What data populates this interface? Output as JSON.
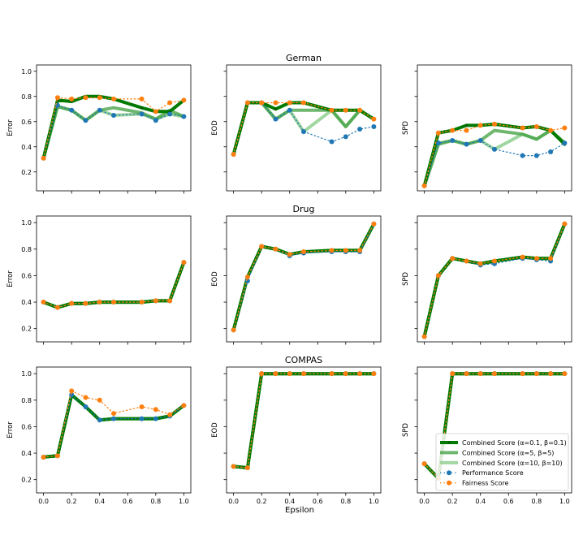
{
  "figure": {
    "shared_xlabel": "Epsilon",
    "row_titles": [
      "German",
      "Drug",
      "COMPAS"
    ],
    "ylabels": [
      "Error",
      "EOD",
      "SPD"
    ],
    "legend": [
      {
        "label": "Combined Score (α=0.1, β=0.1)",
        "color": "#007a00"
      },
      {
        "label": "Combined Score (α=5, β=5)",
        "color": "#3f9f3f"
      },
      {
        "label": "Combined Score (α=10, β=10)",
        "color": "#8fcf8f"
      },
      {
        "label": "Performance Score",
        "color": "#1f77b4"
      },
      {
        "label": "Fairness Score",
        "color": "#ff7f0e"
      }
    ]
  },
  "chart_data": [
    {
      "type": "line",
      "dataset": "German",
      "metric": "Error",
      "title": "German",
      "xlabel": "",
      "ylabel": "Error",
      "x": [
        0.0,
        0.1,
        0.2,
        0.3,
        0.4,
        0.5,
        0.7,
        0.8,
        0.9,
        1.0
      ],
      "xlim": [
        -0.05,
        1.05
      ],
      "ylim": [
        0.05,
        1.05
      ],
      "xticks": [
        0.0,
        0.2,
        0.4,
        0.6,
        0.8,
        1.0
      ],
      "yticks": [
        0.2,
        0.4,
        0.6,
        0.8,
        1.0
      ],
      "show_xtick_labels": false,
      "show_ytick_labels": true,
      "series": [
        {
          "name": "Combined Score (α=0.1, β=0.1)",
          "values": [
            0.31,
            0.77,
            0.76,
            0.8,
            0.8,
            0.78,
            0.71,
            0.68,
            0.68,
            0.77
          ]
        },
        {
          "name": "Combined Score (α=5, β=5)",
          "values": [
            0.31,
            0.72,
            0.69,
            0.61,
            0.69,
            0.71,
            0.67,
            0.62,
            0.69,
            0.64
          ]
        },
        {
          "name": "Combined Score (α=10, β=10)",
          "values": [
            0.31,
            0.72,
            0.69,
            0.61,
            0.69,
            0.65,
            0.66,
            0.62,
            0.66,
            0.64
          ]
        },
        {
          "name": "Performance Score",
          "values": [
            0.31,
            0.73,
            0.69,
            0.61,
            0.69,
            0.65,
            0.66,
            0.61,
            0.66,
            0.64
          ]
        },
        {
          "name": "Fairness Score",
          "values": [
            0.31,
            0.79,
            0.78,
            0.79,
            0.79,
            0.78,
            0.78,
            0.68,
            0.75,
            0.77
          ]
        }
      ]
    },
    {
      "type": "line",
      "dataset": "German",
      "metric": "EOD",
      "title": "German",
      "xlabel": "",
      "ylabel": "EOD",
      "x": [
        0.0,
        0.1,
        0.2,
        0.3,
        0.4,
        0.5,
        0.7,
        0.8,
        0.9,
        1.0
      ],
      "xlim": [
        -0.05,
        1.05
      ],
      "ylim": [
        0.05,
        1.05
      ],
      "xticks": [
        0.0,
        0.2,
        0.4,
        0.6,
        0.8,
        1.0
      ],
      "yticks": [
        0.2,
        0.4,
        0.6,
        0.8,
        1.0
      ],
      "show_xtick_labels": false,
      "show_ytick_labels": false,
      "series": [
        {
          "name": "Combined Score (α=0.1, β=0.1)",
          "values": [
            0.34,
            0.75,
            0.75,
            0.7,
            0.75,
            0.75,
            0.69,
            0.69,
            0.69,
            0.62
          ]
        },
        {
          "name": "Combined Score (α=5, β=5)",
          "values": [
            0.34,
            0.75,
            0.75,
            0.62,
            0.69,
            0.69,
            0.69,
            0.56,
            0.69,
            0.62
          ]
        },
        {
          "name": "Combined Score (α=10, β=10)",
          "values": [
            0.34,
            0.75,
            0.75,
            0.62,
            0.69,
            0.52,
            0.69,
            0.56,
            0.69,
            0.62
          ]
        },
        {
          "name": "Performance Score",
          "values": [
            0.34,
            0.75,
            0.75,
            0.62,
            0.69,
            0.52,
            0.44,
            0.48,
            0.54,
            0.56
          ]
        },
        {
          "name": "Fairness Score",
          "values": [
            0.34,
            0.75,
            0.75,
            0.75,
            0.75,
            0.75,
            0.69,
            0.69,
            0.69,
            0.62
          ]
        }
      ]
    },
    {
      "type": "line",
      "dataset": "German",
      "metric": "SPD",
      "title": "German",
      "xlabel": "",
      "ylabel": "SPD",
      "x": [
        0.0,
        0.1,
        0.2,
        0.3,
        0.4,
        0.5,
        0.7,
        0.8,
        0.9,
        1.0
      ],
      "xlim": [
        -0.05,
        1.05
      ],
      "ylim": [
        0.05,
        1.05
      ],
      "xticks": [
        0.0,
        0.2,
        0.4,
        0.6,
        0.8,
        1.0
      ],
      "yticks": [
        0.2,
        0.4,
        0.6,
        0.8,
        1.0
      ],
      "show_xtick_labels": false,
      "show_ytick_labels": false,
      "series": [
        {
          "name": "Combined Score (α=0.1, β=0.1)",
          "values": [
            0.09,
            0.51,
            0.53,
            0.57,
            0.57,
            0.58,
            0.55,
            0.56,
            0.53,
            0.42
          ]
        },
        {
          "name": "Combined Score (α=5, β=5)",
          "values": [
            0.09,
            0.42,
            0.45,
            0.42,
            0.45,
            0.53,
            0.5,
            0.46,
            0.53,
            0.43
          ]
        },
        {
          "name": "Combined Score (α=10, β=10)",
          "values": [
            0.09,
            0.43,
            0.45,
            0.42,
            0.45,
            0.38,
            0.5,
            0.46,
            0.53,
            0.43
          ]
        },
        {
          "name": "Performance Score",
          "values": [
            0.09,
            0.43,
            0.45,
            0.42,
            0.45,
            0.38,
            0.33,
            0.33,
            0.36,
            0.43
          ]
        },
        {
          "name": "Fairness Score",
          "values": [
            0.09,
            0.51,
            0.53,
            0.53,
            0.57,
            0.58,
            0.55,
            0.56,
            0.53,
            0.55
          ]
        }
      ]
    },
    {
      "type": "line",
      "dataset": "Drug",
      "metric": "Error",
      "title": "Drug",
      "xlabel": "",
      "ylabel": "Error",
      "x": [
        0.0,
        0.1,
        0.2,
        0.3,
        0.4,
        0.5,
        0.7,
        0.8,
        0.9,
        1.0
      ],
      "xlim": [
        -0.05,
        1.05
      ],
      "ylim": [
        0.1,
        1.05
      ],
      "xticks": [
        0.0,
        0.2,
        0.4,
        0.6,
        0.8,
        1.0
      ],
      "yticks": [
        0.2,
        0.4,
        0.6,
        0.8,
        1.0
      ],
      "show_xtick_labels": false,
      "show_ytick_labels": true,
      "series": [
        {
          "name": "Combined Score (α=0.1, β=0.1)",
          "values": [
            0.4,
            0.36,
            0.39,
            0.39,
            0.4,
            0.4,
            0.4,
            0.41,
            0.41,
            0.7
          ]
        },
        {
          "name": "Combined Score (α=5, β=5)",
          "values": [
            0.4,
            0.36,
            0.39,
            0.39,
            0.4,
            0.4,
            0.4,
            0.41,
            0.41,
            0.7
          ]
        },
        {
          "name": "Combined Score (α=10, β=10)",
          "values": [
            0.4,
            0.36,
            0.39,
            0.39,
            0.4,
            0.4,
            0.4,
            0.41,
            0.41,
            0.7
          ]
        },
        {
          "name": "Performance Score",
          "values": [
            0.4,
            0.36,
            0.39,
            0.39,
            0.4,
            0.4,
            0.4,
            0.41,
            0.41,
            0.7
          ]
        },
        {
          "name": "Fairness Score",
          "values": [
            0.4,
            0.36,
            0.39,
            0.39,
            0.4,
            0.4,
            0.4,
            0.41,
            0.41,
            0.7
          ]
        }
      ]
    },
    {
      "type": "line",
      "dataset": "Drug",
      "metric": "EOD",
      "title": "Drug",
      "xlabel": "",
      "ylabel": "EOD",
      "x": [
        0.0,
        0.1,
        0.2,
        0.3,
        0.4,
        0.5,
        0.7,
        0.8,
        0.9,
        1.0
      ],
      "xlim": [
        -0.05,
        1.05
      ],
      "ylim": [
        0.1,
        1.05
      ],
      "xticks": [
        0.0,
        0.2,
        0.4,
        0.6,
        0.8,
        1.0
      ],
      "yticks": [
        0.2,
        0.4,
        0.6,
        0.8,
        1.0
      ],
      "show_xtick_labels": false,
      "show_ytick_labels": false,
      "series": [
        {
          "name": "Combined Score (α=0.1, β=0.1)",
          "values": [
            0.19,
            0.59,
            0.82,
            0.8,
            0.76,
            0.78,
            0.79,
            0.79,
            0.79,
            0.99
          ]
        },
        {
          "name": "Combined Score (α=5, β=5)",
          "values": [
            0.19,
            0.59,
            0.82,
            0.8,
            0.76,
            0.78,
            0.79,
            0.79,
            0.79,
            0.99
          ]
        },
        {
          "name": "Combined Score (α=10, β=10)",
          "values": [
            0.19,
            0.59,
            0.82,
            0.8,
            0.76,
            0.78,
            0.79,
            0.79,
            0.79,
            0.99
          ]
        },
        {
          "name": "Performance Score",
          "values": [
            0.19,
            0.56,
            0.82,
            0.8,
            0.75,
            0.77,
            0.78,
            0.78,
            0.78,
            0.99
          ]
        },
        {
          "name": "Fairness Score",
          "values": [
            0.19,
            0.59,
            0.82,
            0.8,
            0.76,
            0.78,
            0.79,
            0.79,
            0.79,
            0.99
          ]
        }
      ]
    },
    {
      "type": "line",
      "dataset": "Drug",
      "metric": "SPD",
      "title": "Drug",
      "xlabel": "",
      "ylabel": "SPD",
      "x": [
        0.0,
        0.1,
        0.2,
        0.3,
        0.4,
        0.5,
        0.7,
        0.8,
        0.9,
        1.0
      ],
      "xlim": [
        -0.05,
        1.05
      ],
      "ylim": [
        0.1,
        1.05
      ],
      "xticks": [
        0.0,
        0.2,
        0.4,
        0.6,
        0.8,
        1.0
      ],
      "yticks": [
        0.2,
        0.4,
        0.6,
        0.8,
        1.0
      ],
      "show_xtick_labels": false,
      "show_ytick_labels": false,
      "series": [
        {
          "name": "Combined Score (α=0.1, β=0.1)",
          "values": [
            0.14,
            0.6,
            0.73,
            0.71,
            0.69,
            0.71,
            0.74,
            0.73,
            0.73,
            0.99
          ]
        },
        {
          "name": "Combined Score (α=5, β=5)",
          "values": [
            0.14,
            0.6,
            0.73,
            0.71,
            0.69,
            0.71,
            0.74,
            0.73,
            0.73,
            0.99
          ]
        },
        {
          "name": "Combined Score (α=10, β=10)",
          "values": [
            0.14,
            0.6,
            0.73,
            0.71,
            0.69,
            0.71,
            0.74,
            0.73,
            0.73,
            0.99
          ]
        },
        {
          "name": "Performance Score",
          "values": [
            0.14,
            0.6,
            0.73,
            0.71,
            0.68,
            0.69,
            0.73,
            0.72,
            0.71,
            0.99
          ]
        },
        {
          "name": "Fairness Score",
          "values": [
            0.14,
            0.6,
            0.73,
            0.71,
            0.69,
            0.71,
            0.74,
            0.73,
            0.73,
            0.99
          ]
        }
      ]
    },
    {
      "type": "line",
      "dataset": "COMPAS",
      "metric": "Error",
      "title": "COMPAS",
      "xlabel": "",
      "ylabel": "Error",
      "x": [
        0.0,
        0.1,
        0.2,
        0.3,
        0.4,
        0.5,
        0.7,
        0.8,
        0.9,
        1.0
      ],
      "xlim": [
        -0.05,
        1.05
      ],
      "ylim": [
        0.1,
        1.05
      ],
      "xticks": [
        0.0,
        0.2,
        0.4,
        0.6,
        0.8,
        1.0
      ],
      "yticks": [
        0.2,
        0.4,
        0.6,
        0.8,
        1.0
      ],
      "show_xtick_labels": true,
      "show_ytick_labels": true,
      "series": [
        {
          "name": "Combined Score (α=0.1, β=0.1)",
          "values": [
            0.37,
            0.38,
            0.84,
            0.75,
            0.65,
            0.66,
            0.66,
            0.66,
            0.68,
            0.76
          ]
        },
        {
          "name": "Combined Score (α=5, β=5)",
          "values": [
            0.37,
            0.38,
            0.84,
            0.75,
            0.65,
            0.66,
            0.66,
            0.66,
            0.68,
            0.76
          ]
        },
        {
          "name": "Combined Score (α=10, β=10)",
          "values": [
            0.37,
            0.38,
            0.84,
            0.75,
            0.65,
            0.66,
            0.66,
            0.66,
            0.68,
            0.76
          ]
        },
        {
          "name": "Performance Score",
          "values": [
            0.37,
            0.38,
            0.84,
            0.75,
            0.65,
            0.66,
            0.66,
            0.66,
            0.68,
            0.76
          ]
        },
        {
          "name": "Fairness Score",
          "values": [
            0.37,
            0.38,
            0.87,
            0.82,
            0.8,
            0.7,
            0.75,
            0.73,
            0.69,
            0.76
          ]
        }
      ]
    },
    {
      "type": "line",
      "dataset": "COMPAS",
      "metric": "EOD",
      "title": "COMPAS",
      "xlabel": "Epsilon",
      "ylabel": "EOD",
      "x": [
        0.0,
        0.1,
        0.2,
        0.3,
        0.4,
        0.5,
        0.7,
        0.8,
        0.9,
        1.0
      ],
      "xlim": [
        -0.05,
        1.05
      ],
      "ylim": [
        0.1,
        1.05
      ],
      "xticks": [
        0.0,
        0.2,
        0.4,
        0.6,
        0.8,
        1.0
      ],
      "yticks": [
        0.2,
        0.4,
        0.6,
        0.8,
        1.0
      ],
      "show_xtick_labels": true,
      "show_ytick_labels": false,
      "series": [
        {
          "name": "Combined Score (α=0.1, β=0.1)",
          "values": [
            0.3,
            0.29,
            1.0,
            1.0,
            1.0,
            1.0,
            1.0,
            1.0,
            1.0,
            1.0
          ]
        },
        {
          "name": "Combined Score (α=5, β=5)",
          "values": [
            0.3,
            0.29,
            1.0,
            1.0,
            1.0,
            1.0,
            1.0,
            1.0,
            1.0,
            1.0
          ]
        },
        {
          "name": "Combined Score (α=10, β=10)",
          "values": [
            0.3,
            0.29,
            1.0,
            1.0,
            1.0,
            1.0,
            1.0,
            1.0,
            1.0,
            1.0
          ]
        },
        {
          "name": "Performance Score",
          "values": [
            0.3,
            0.29,
            1.0,
            1.0,
            1.0,
            1.0,
            1.0,
            1.0,
            1.0,
            1.0
          ]
        },
        {
          "name": "Fairness Score",
          "values": [
            0.3,
            0.29,
            1.0,
            1.0,
            1.0,
            1.0,
            1.0,
            1.0,
            1.0,
            1.0
          ]
        }
      ]
    },
    {
      "type": "line",
      "dataset": "COMPAS",
      "metric": "SPD",
      "title": "COMPAS",
      "xlabel": "",
      "ylabel": "SPD",
      "x": [
        0.0,
        0.1,
        0.2,
        0.3,
        0.4,
        0.5,
        0.7,
        0.8,
        0.9,
        1.0
      ],
      "xlim": [
        -0.05,
        1.05
      ],
      "ylim": [
        0.1,
        1.05
      ],
      "xticks": [
        0.0,
        0.2,
        0.4,
        0.6,
        0.8,
        1.0
      ],
      "yticks": [
        0.2,
        0.4,
        0.6,
        0.8,
        1.0
      ],
      "show_xtick_labels": true,
      "show_ytick_labels": false,
      "legend": "lower right",
      "series": [
        {
          "name": "Combined Score (α=0.1, β=0.1)",
          "values": [
            0.32,
            0.21,
            1.0,
            1.0,
            1.0,
            1.0,
            1.0,
            1.0,
            1.0,
            1.0
          ]
        },
        {
          "name": "Combined Score (α=5, β=5)",
          "values": [
            0.32,
            0.21,
            1.0,
            1.0,
            1.0,
            1.0,
            1.0,
            1.0,
            1.0,
            1.0
          ]
        },
        {
          "name": "Combined Score (α=10, β=10)",
          "values": [
            0.32,
            0.21,
            1.0,
            1.0,
            1.0,
            1.0,
            1.0,
            1.0,
            1.0,
            1.0
          ]
        },
        {
          "name": "Performance Score",
          "values": [
            0.32,
            0.21,
            1.0,
            1.0,
            1.0,
            1.0,
            1.0,
            1.0,
            1.0,
            1.0
          ]
        },
        {
          "name": "Fairness Score",
          "values": [
            0.32,
            0.21,
            1.0,
            1.0,
            1.0,
            1.0,
            1.0,
            1.0,
            1.0,
            1.0
          ]
        }
      ]
    }
  ]
}
